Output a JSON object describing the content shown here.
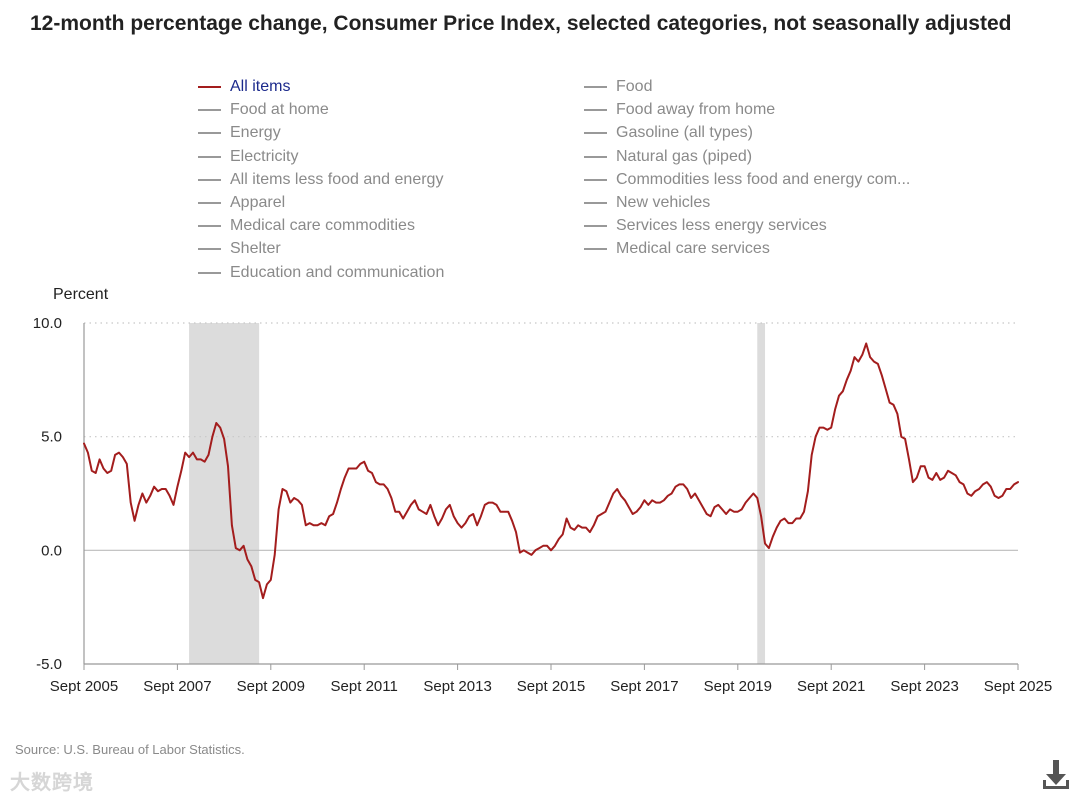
{
  "title": "12-month percentage change, Consumer Price Index, selected categories, not seasonally adjusted",
  "legend": [
    {
      "label": "All items",
      "active": true
    },
    {
      "label": "Food at home",
      "active": false
    },
    {
      "label": "Energy",
      "active": false
    },
    {
      "label": "Electricity",
      "active": false
    },
    {
      "label": "All items less food and energy",
      "active": false
    },
    {
      "label": "Apparel",
      "active": false
    },
    {
      "label": "Medical care commodities",
      "active": false
    },
    {
      "label": "Shelter",
      "active": false
    },
    {
      "label": "Education and communication",
      "active": false
    },
    {
      "label": "Food",
      "active": false
    },
    {
      "label": "Food away from home",
      "active": false
    },
    {
      "label": "Gasoline (all types)",
      "active": false
    },
    {
      "label": "Natural gas (piped)",
      "active": false
    },
    {
      "label": "Commodities less food and energy com...",
      "active": false
    },
    {
      "label": "New vehicles",
      "active": false
    },
    {
      "label": "Services less energy services",
      "active": false
    },
    {
      "label": "Medical care services",
      "active": false
    }
  ],
  "source": "Source: U.S. Bureau of Labor Statistics.",
  "watermark": "大数跨境",
  "colors": {
    "series": "#a31d1d",
    "recession": "#dcdcdc",
    "inactive": "#999999",
    "active_label": "#1c2a8c"
  },
  "download_icon": "download-icon",
  "chart_data": {
    "type": "line",
    "ylabel": "Percent",
    "ylim": [
      -5,
      10
    ],
    "yticks": [
      "10.0",
      "5.0",
      "0.0",
      "-5.0"
    ],
    "ytick_values": [
      10,
      5,
      0,
      -5
    ],
    "grid": "horizontal dotted",
    "xlim": [
      "2005-09",
      "2025-09"
    ],
    "xtick_labels": [
      "Sept 2005",
      "Sept 2007",
      "Sept 2009",
      "Sept 2011",
      "Sept 2013",
      "Sept 2015",
      "Sept 2017",
      "Sept 2019",
      "Sept 2021",
      "Sept 2023",
      "Sept 2025"
    ],
    "xtick_values": [
      "2005-09",
      "2007-09",
      "2009-09",
      "2011-09",
      "2013-09",
      "2015-09",
      "2017-09",
      "2019-09",
      "2021-09",
      "2023-09",
      "2025-09"
    ],
    "recessions": [
      {
        "start": "2007-12",
        "end": "2009-06"
      },
      {
        "start": "2020-02",
        "end": "2020-04"
      }
    ],
    "series": [
      {
        "name": "All items",
        "points": [
          [
            "2005-09",
            4.7
          ],
          [
            "2005-10",
            4.3
          ],
          [
            "2005-11",
            3.5
          ],
          [
            "2005-12",
            3.4
          ],
          [
            "2006-01",
            4.0
          ],
          [
            "2006-02",
            3.6
          ],
          [
            "2006-03",
            3.4
          ],
          [
            "2006-04",
            3.5
          ],
          [
            "2006-05",
            4.2
          ],
          [
            "2006-06",
            4.3
          ],
          [
            "2006-07",
            4.1
          ],
          [
            "2006-08",
            3.8
          ],
          [
            "2006-09",
            2.1
          ],
          [
            "2006-10",
            1.3
          ],
          [
            "2006-11",
            2.0
          ],
          [
            "2006-12",
            2.5
          ],
          [
            "2007-01",
            2.1
          ],
          [
            "2007-02",
            2.4
          ],
          [
            "2007-03",
            2.8
          ],
          [
            "2007-04",
            2.6
          ],
          [
            "2007-05",
            2.7
          ],
          [
            "2007-06",
            2.7
          ],
          [
            "2007-07",
            2.4
          ],
          [
            "2007-08",
            2.0
          ],
          [
            "2007-09",
            2.8
          ],
          [
            "2007-10",
            3.5
          ],
          [
            "2007-11",
            4.3
          ],
          [
            "2007-12",
            4.1
          ],
          [
            "2008-01",
            4.3
          ],
          [
            "2008-02",
            4.0
          ],
          [
            "2008-03",
            4.0
          ],
          [
            "2008-04",
            3.9
          ],
          [
            "2008-05",
            4.2
          ],
          [
            "2008-06",
            5.0
          ],
          [
            "2008-07",
            5.6
          ],
          [
            "2008-08",
            5.4
          ],
          [
            "2008-09",
            4.9
          ],
          [
            "2008-10",
            3.7
          ],
          [
            "2008-11",
            1.1
          ],
          [
            "2008-12",
            0.1
          ],
          [
            "2009-01",
            0.0
          ],
          [
            "2009-02",
            0.2
          ],
          [
            "2009-03",
            -0.4
          ],
          [
            "2009-04",
            -0.7
          ],
          [
            "2009-05",
            -1.3
          ],
          [
            "2009-06",
            -1.4
          ],
          [
            "2009-07",
            -2.1
          ],
          [
            "2009-08",
            -1.5
          ],
          [
            "2009-09",
            -1.3
          ],
          [
            "2009-10",
            -0.2
          ],
          [
            "2009-11",
            1.8
          ],
          [
            "2009-12",
            2.7
          ],
          [
            "2010-01",
            2.6
          ],
          [
            "2010-02",
            2.1
          ],
          [
            "2010-03",
            2.3
          ],
          [
            "2010-04",
            2.2
          ],
          [
            "2010-05",
            2.0
          ],
          [
            "2010-06",
            1.1
          ],
          [
            "2010-07",
            1.2
          ],
          [
            "2010-08",
            1.1
          ],
          [
            "2010-09",
            1.1
          ],
          [
            "2010-10",
            1.2
          ],
          [
            "2010-11",
            1.1
          ],
          [
            "2010-12",
            1.5
          ],
          [
            "2011-01",
            1.6
          ],
          [
            "2011-02",
            2.1
          ],
          [
            "2011-03",
            2.7
          ],
          [
            "2011-04",
            3.2
          ],
          [
            "2011-05",
            3.6
          ],
          [
            "2011-06",
            3.6
          ],
          [
            "2011-07",
            3.6
          ],
          [
            "2011-08",
            3.8
          ],
          [
            "2011-09",
            3.9
          ],
          [
            "2011-10",
            3.5
          ],
          [
            "2011-11",
            3.4
          ],
          [
            "2011-12",
            3.0
          ],
          [
            "2012-01",
            2.9
          ],
          [
            "2012-02",
            2.9
          ],
          [
            "2012-03",
            2.7
          ],
          [
            "2012-04",
            2.3
          ],
          [
            "2012-05",
            1.7
          ],
          [
            "2012-06",
            1.7
          ],
          [
            "2012-07",
            1.4
          ],
          [
            "2012-08",
            1.7
          ],
          [
            "2012-09",
            2.0
          ],
          [
            "2012-10",
            2.2
          ],
          [
            "2012-11",
            1.8
          ],
          [
            "2012-12",
            1.7
          ],
          [
            "2013-01",
            1.6
          ],
          [
            "2013-02",
            2.0
          ],
          [
            "2013-03",
            1.5
          ],
          [
            "2013-04",
            1.1
          ],
          [
            "2013-05",
            1.4
          ],
          [
            "2013-06",
            1.8
          ],
          [
            "2013-07",
            2.0
          ],
          [
            "2013-08",
            1.5
          ],
          [
            "2013-09",
            1.2
          ],
          [
            "2013-10",
            1.0
          ],
          [
            "2013-11",
            1.2
          ],
          [
            "2013-12",
            1.5
          ],
          [
            "2014-01",
            1.6
          ],
          [
            "2014-02",
            1.1
          ],
          [
            "2014-03",
            1.5
          ],
          [
            "2014-04",
            2.0
          ],
          [
            "2014-05",
            2.1
          ],
          [
            "2014-06",
            2.1
          ],
          [
            "2014-07",
            2.0
          ],
          [
            "2014-08",
            1.7
          ],
          [
            "2014-09",
            1.7
          ],
          [
            "2014-10",
            1.7
          ],
          [
            "2014-11",
            1.3
          ],
          [
            "2014-12",
            0.8
          ],
          [
            "2015-01",
            -0.1
          ],
          [
            "2015-02",
            0.0
          ],
          [
            "2015-03",
            -0.1
          ],
          [
            "2015-04",
            -0.2
          ],
          [
            "2015-05",
            0.0
          ],
          [
            "2015-06",
            0.1
          ],
          [
            "2015-07",
            0.2
          ],
          [
            "2015-08",
            0.2
          ],
          [
            "2015-09",
            0.0
          ],
          [
            "2015-10",
            0.2
          ],
          [
            "2015-11",
            0.5
          ],
          [
            "2015-12",
            0.7
          ],
          [
            "2016-01",
            1.4
          ],
          [
            "2016-02",
            1.0
          ],
          [
            "2016-03",
            0.9
          ],
          [
            "2016-04",
            1.1
          ],
          [
            "2016-05",
            1.0
          ],
          [
            "2016-06",
            1.0
          ],
          [
            "2016-07",
            0.8
          ],
          [
            "2016-08",
            1.1
          ],
          [
            "2016-09",
            1.5
          ],
          [
            "2016-10",
            1.6
          ],
          [
            "2016-11",
            1.7
          ],
          [
            "2016-12",
            2.1
          ],
          [
            "2017-01",
            2.5
          ],
          [
            "2017-02",
            2.7
          ],
          [
            "2017-03",
            2.4
          ],
          [
            "2017-04",
            2.2
          ],
          [
            "2017-05",
            1.9
          ],
          [
            "2017-06",
            1.6
          ],
          [
            "2017-07",
            1.7
          ],
          [
            "2017-08",
            1.9
          ],
          [
            "2017-09",
            2.2
          ],
          [
            "2017-10",
            2.0
          ],
          [
            "2017-11",
            2.2
          ],
          [
            "2017-12",
            2.1
          ],
          [
            "2018-01",
            2.1
          ],
          [
            "2018-02",
            2.2
          ],
          [
            "2018-03",
            2.4
          ],
          [
            "2018-04",
            2.5
          ],
          [
            "2018-05",
            2.8
          ],
          [
            "2018-06",
            2.9
          ],
          [
            "2018-07",
            2.9
          ],
          [
            "2018-08",
            2.7
          ],
          [
            "2018-09",
            2.3
          ],
          [
            "2018-10",
            2.5
          ],
          [
            "2018-11",
            2.2
          ],
          [
            "2018-12",
            1.9
          ],
          [
            "2019-01",
            1.6
          ],
          [
            "2019-02",
            1.5
          ],
          [
            "2019-03",
            1.9
          ],
          [
            "2019-04",
            2.0
          ],
          [
            "2019-05",
            1.8
          ],
          [
            "2019-06",
            1.6
          ],
          [
            "2019-07",
            1.8
          ],
          [
            "2019-08",
            1.7
          ],
          [
            "2019-09",
            1.7
          ],
          [
            "2019-10",
            1.8
          ],
          [
            "2019-11",
            2.1
          ],
          [
            "2019-12",
            2.3
          ],
          [
            "2020-01",
            2.5
          ],
          [
            "2020-02",
            2.3
          ],
          [
            "2020-03",
            1.5
          ],
          [
            "2020-04",
            0.3
          ],
          [
            "2020-05",
            0.1
          ],
          [
            "2020-06",
            0.6
          ],
          [
            "2020-07",
            1.0
          ],
          [
            "2020-08",
            1.3
          ],
          [
            "2020-09",
            1.4
          ],
          [
            "2020-10",
            1.2
          ],
          [
            "2020-11",
            1.2
          ],
          [
            "2020-12",
            1.4
          ],
          [
            "2021-01",
            1.4
          ],
          [
            "2021-02",
            1.7
          ],
          [
            "2021-03",
            2.6
          ],
          [
            "2021-04",
            4.2
          ],
          [
            "2021-05",
            5.0
          ],
          [
            "2021-06",
            5.4
          ],
          [
            "2021-07",
            5.4
          ],
          [
            "2021-08",
            5.3
          ],
          [
            "2021-09",
            5.4
          ],
          [
            "2021-10",
            6.2
          ],
          [
            "2021-11",
            6.8
          ],
          [
            "2021-12",
            7.0
          ],
          [
            "2022-01",
            7.5
          ],
          [
            "2022-02",
            7.9
          ],
          [
            "2022-03",
            8.5
          ],
          [
            "2022-04",
            8.3
          ],
          [
            "2022-05",
            8.6
          ],
          [
            "2022-06",
            9.1
          ],
          [
            "2022-07",
            8.5
          ],
          [
            "2022-08",
            8.3
          ],
          [
            "2022-09",
            8.2
          ],
          [
            "2022-10",
            7.7
          ],
          [
            "2022-11",
            7.1
          ],
          [
            "2022-12",
            6.5
          ],
          [
            "2023-01",
            6.4
          ],
          [
            "2023-02",
            6.0
          ],
          [
            "2023-03",
            5.0
          ],
          [
            "2023-04",
            4.9
          ],
          [
            "2023-05",
            4.0
          ],
          [
            "2023-06",
            3.0
          ],
          [
            "2023-07",
            3.2
          ],
          [
            "2023-08",
            3.7
          ],
          [
            "2023-09",
            3.7
          ],
          [
            "2023-10",
            3.2
          ],
          [
            "2023-11",
            3.1
          ],
          [
            "2023-12",
            3.4
          ],
          [
            "2024-01",
            3.1
          ],
          [
            "2024-02",
            3.2
          ],
          [
            "2024-03",
            3.5
          ],
          [
            "2024-04",
            3.4
          ],
          [
            "2024-05",
            3.3
          ],
          [
            "2024-06",
            3.0
          ],
          [
            "2024-07",
            2.9
          ],
          [
            "2024-08",
            2.5
          ],
          [
            "2024-09",
            2.4
          ],
          [
            "2024-10",
            2.6
          ],
          [
            "2024-11",
            2.7
          ],
          [
            "2024-12",
            2.9
          ],
          [
            "2025-01",
            3.0
          ],
          [
            "2025-02",
            2.8
          ],
          [
            "2025-03",
            2.4
          ],
          [
            "2025-04",
            2.3
          ],
          [
            "2025-05",
            2.4
          ],
          [
            "2025-06",
            2.7
          ],
          [
            "2025-07",
            2.7
          ],
          [
            "2025-08",
            2.9
          ],
          [
            "2025-09",
            3.0
          ]
        ]
      }
    ]
  }
}
